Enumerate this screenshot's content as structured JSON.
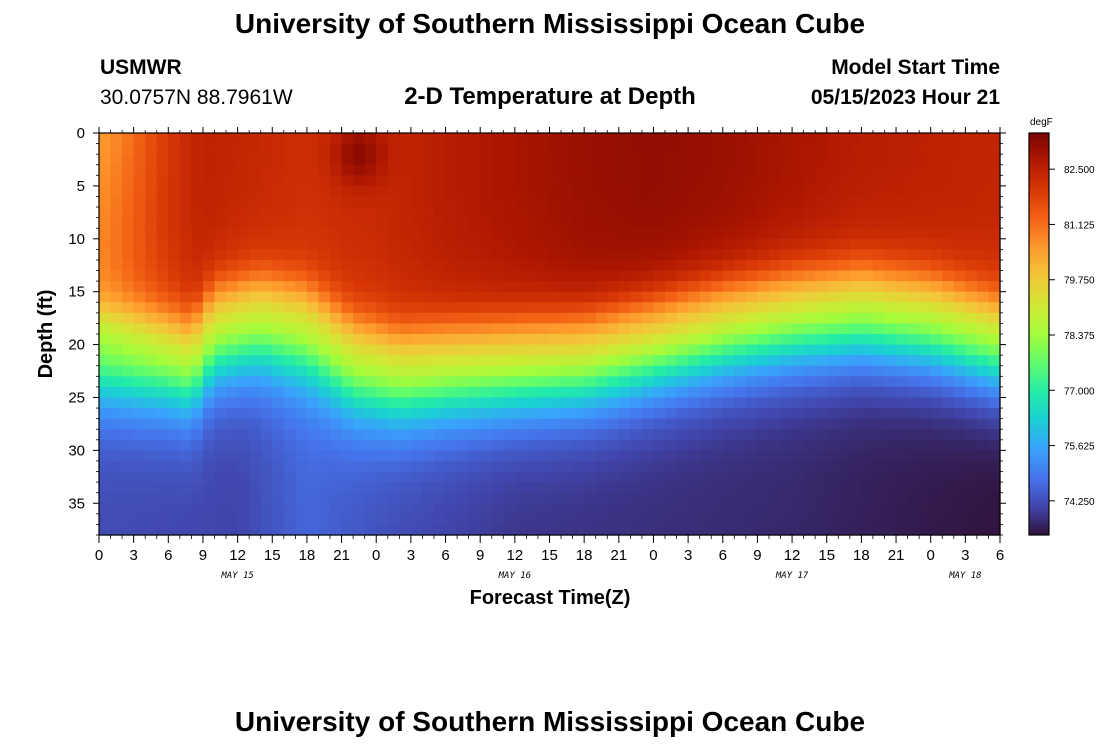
{
  "header": {
    "title": "University of Southern Mississippi Ocean Cube",
    "station": "USMWR",
    "coords": "30.0757N  88.7961W",
    "subtitle": "2-D Temperature at Depth",
    "model_start_label": "Model Start Time",
    "model_start_value": "05/15/2023 Hour 21"
  },
  "footer": {
    "title": "University of Southern Mississippi Ocean Cube"
  },
  "chart_data": {
    "type": "heatmap",
    "xlabel": "Forecast Time(Z)",
    "ylabel": "Depth (ft)",
    "units": "degF",
    "y_ticks": [
      "0",
      "5",
      "10",
      "15",
      "20",
      "25",
      "30",
      "35"
    ],
    "y_tick_values": [
      0,
      5,
      10,
      15,
      20,
      25,
      30,
      35
    ],
    "ylim": [
      38,
      0
    ],
    "x_tick_labels": [
      "0",
      "3",
      "6",
      "9",
      "12",
      "15",
      "18",
      "21",
      "0",
      "3",
      "6",
      "9",
      "12",
      "15",
      "18",
      "21",
      "0",
      "3",
      "6",
      "9",
      "12",
      "15",
      "18",
      "21",
      "0",
      "3",
      "6"
    ],
    "x_range_hours": [
      0,
      78
    ],
    "date_labels": [
      {
        "label": "MAY 15",
        "hour": 12
      },
      {
        "label": "MAY 16",
        "hour": 36
      },
      {
        "label": "MAY 17",
        "hour": 60
      },
      {
        "label": "MAY 18",
        "hour": 75
      }
    ],
    "colorbar_ticks": [
      "82.500",
      "81.125",
      "79.750",
      "78.375",
      "77.000",
      "75.625",
      "74.250"
    ],
    "colorbar_tick_values": [
      82.5,
      81.125,
      79.75,
      78.375,
      77.0,
      75.625,
      74.25
    ],
    "colorbar_range": [
      73.4,
      83.4
    ],
    "colormap": [
      "#30123b",
      "#4145ab",
      "#4675ed",
      "#39a2fc",
      "#1bcfd4",
      "#24eca6",
      "#61fc6c",
      "#a4fc3b",
      "#d1e834",
      "#f3c63a",
      "#fe9b2d",
      "#f36315",
      "#d93806",
      "#b11901",
      "#7a0402"
    ],
    "surface_temp_base": 82.0,
    "thermocline_depth": [
      22,
      22.5,
      23,
      20,
      19,
      20,
      23,
      24,
      23.5,
      23,
      22.5,
      21,
      19.5,
      18.5,
      18,
      19,
      21
    ],
    "thermocline_hours": [
      0,
      6,
      8,
      10,
      14,
      18,
      22,
      26,
      30,
      36,
      42,
      48,
      54,
      60,
      66,
      72,
      78
    ],
    "upper_layer_temp_hours": [
      0,
      3,
      6,
      9,
      12,
      18,
      24,
      30,
      36,
      42,
      48,
      54,
      60,
      66,
      72,
      78
    ],
    "upper_layer_temp": [
      81.4,
      81.8,
      82.2,
      82.5,
      82.4,
      82.2,
      82.3,
      82.6,
      82.8,
      83.0,
      83.1,
      83.0,
      82.8,
      82.6,
      82.5,
      82.4
    ],
    "bottom_temp_hours": [
      0,
      12,
      18,
      26,
      36,
      48,
      60,
      72,
      78
    ],
    "bottom_temp": [
      74.2,
      74.1,
      74.6,
      74.2,
      73.9,
      73.8,
      73.7,
      73.5,
      73.4
    ]
  }
}
